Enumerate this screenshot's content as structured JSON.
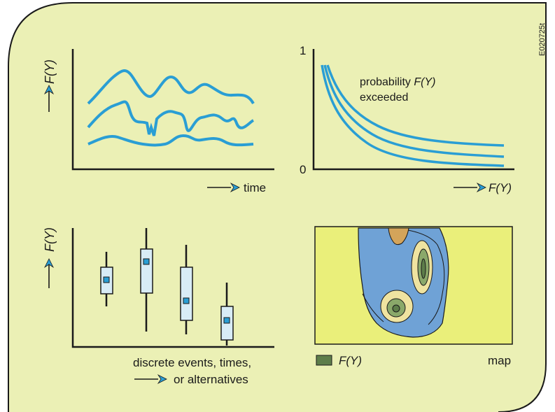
{
  "figure_code": "E020725t",
  "colors": {
    "panel_background": "#ebf0b5",
    "panel_border": "#1a1a1a",
    "curve": "#2a9ed4",
    "box_fill": "#d8ecf6",
    "median_marker": "#2a9ed4",
    "map_background": "#eaef7a",
    "map_blue": "#6fa2d6",
    "map_orange": "#d4a45a",
    "map_yellow": "#efe3a0",
    "map_green": "#8aa86a",
    "map_darkgreen": "#5d7d4a"
  },
  "panels": {
    "timeseries": {
      "ylabel": "F(Y)",
      "xlabel": "time",
      "arrow_icon": "right-arrow-icon"
    },
    "exceedance": {
      "y_tick_top": "1",
      "y_tick_bottom": "0",
      "annotation_line1_prefix": "probability ",
      "annotation_line1_var": "F(Y)",
      "annotation_line2": "exceeded",
      "xlabel": "F(Y)"
    },
    "boxplots": {
      "ylabel": "F(Y)",
      "xlabel_line1": "discrete events, times,",
      "xlabel_line2": "or alternatives"
    },
    "map": {
      "legend_label": "F(Y)",
      "caption": "map"
    }
  }
}
